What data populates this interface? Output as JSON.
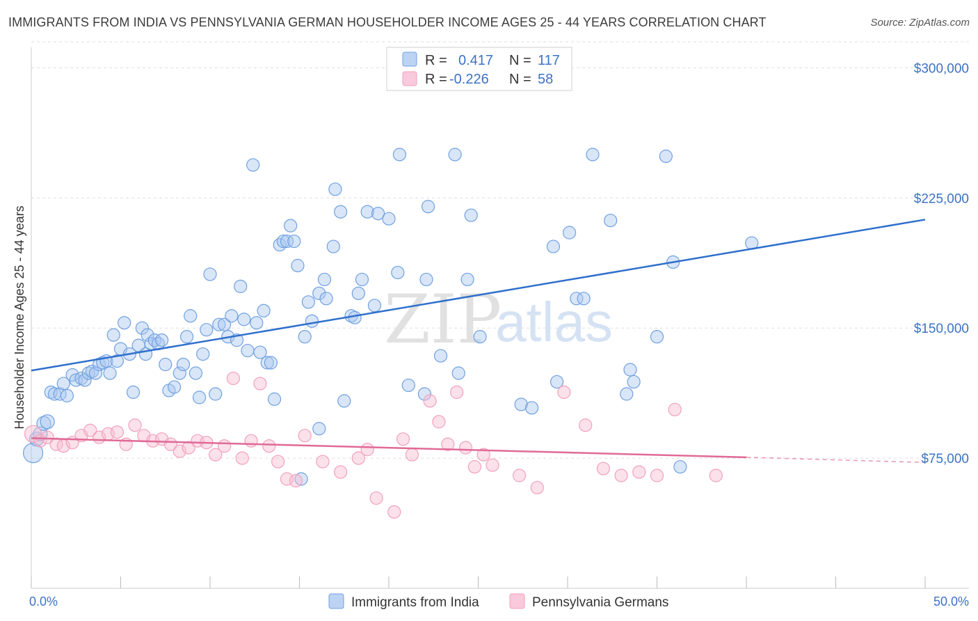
{
  "title": "IMMIGRANTS FROM INDIA VS PENNSYLVANIA GERMAN HOUSEHOLDER INCOME AGES 25 - 44 YEARS CORRELATION CHART",
  "source": "Source: ZipAtlas.com",
  "watermark": {
    "zip": "ZIP",
    "atlas": "atlas"
  },
  "colors": {
    "india": "#6fa0e0",
    "india_line": "#2f6fcc",
    "pa": "#f2a0bb",
    "pa_line": "#e06a96",
    "axis_text": "#3b73c4",
    "grid": "#dddddd"
  },
  "legend": {
    "rows": [
      {
        "r_label": "R =",
        "r_value": "0.417",
        "n_label": "N =",
        "n_value": "117"
      },
      {
        "r_label": "R =",
        "r_value": "-0.226",
        "n_label": "N =",
        "n_value": "58"
      }
    ]
  },
  "chart_data": {
    "type": "scatter",
    "xlabel": "",
    "ylabel": "Householder Income Ages 25 - 44 years",
    "xlim": [
      0,
      50
    ],
    "ylim": [
      0,
      315000
    ],
    "x_tick_labels": [
      "0.0%",
      "50.0%"
    ],
    "y_ticks": [
      75000,
      150000,
      225000,
      300000
    ],
    "y_tick_labels": [
      "$75,000",
      "$150,000",
      "$225,000",
      "$300,000"
    ],
    "grid": "horizontal dashed",
    "legend_position": "top-center",
    "series": [
      {
        "name": "Immigrants from India",
        "r": 0.417,
        "n": 117,
        "trend": [
          [
            0,
            125500
          ],
          [
            50,
            212500
          ]
        ],
        "points": [
          [
            0.1,
            78000
          ],
          [
            0.3,
            86000
          ],
          [
            0.5,
            89000
          ],
          [
            0.7,
            95000
          ],
          [
            0.9,
            96000
          ],
          [
            1.1,
            113000
          ],
          [
            1.3,
            112000
          ],
          [
            1.6,
            112000
          ],
          [
            1.8,
            118000
          ],
          [
            2.0,
            111000
          ],
          [
            2.3,
            123000
          ],
          [
            2.5,
            120000
          ],
          [
            2.8,
            121000
          ],
          [
            3.0,
            120000
          ],
          [
            3.2,
            124000
          ],
          [
            3.4,
            125000
          ],
          [
            3.6,
            124000
          ],
          [
            3.8,
            129000
          ],
          [
            4.0,
            130000
          ],
          [
            4.2,
            131000
          ],
          [
            4.4,
            124000
          ],
          [
            4.6,
            146000
          ],
          [
            4.8,
            131000
          ],
          [
            5.0,
            138000
          ],
          [
            5.2,
            153000
          ],
          [
            5.5,
            135000
          ],
          [
            5.7,
            113000
          ],
          [
            6.0,
            140000
          ],
          [
            6.2,
            150000
          ],
          [
            6.4,
            135000
          ],
          [
            6.5,
            146000
          ],
          [
            6.7,
            141000
          ],
          [
            6.9,
            143000
          ],
          [
            7.1,
            141000
          ],
          [
            7.3,
            143000
          ],
          [
            7.5,
            129000
          ],
          [
            7.7,
            114000
          ],
          [
            8.0,
            116000
          ],
          [
            8.3,
            124000
          ],
          [
            8.5,
            129000
          ],
          [
            8.7,
            145000
          ],
          [
            8.9,
            157000
          ],
          [
            9.2,
            124000
          ],
          [
            9.4,
            110000
          ],
          [
            9.6,
            135000
          ],
          [
            9.8,
            149000
          ],
          [
            10.0,
            181000
          ],
          [
            10.3,
            112000
          ],
          [
            10.5,
            152000
          ],
          [
            10.8,
            152000
          ],
          [
            11.0,
            145000
          ],
          [
            11.2,
            157000
          ],
          [
            11.5,
            143000
          ],
          [
            11.7,
            174000
          ],
          [
            11.9,
            155000
          ],
          [
            12.1,
            137000
          ],
          [
            12.4,
            244000
          ],
          [
            12.6,
            153000
          ],
          [
            12.8,
            136000
          ],
          [
            13.0,
            160000
          ],
          [
            13.2,
            130000
          ],
          [
            13.4,
            130000
          ],
          [
            13.6,
            109000
          ],
          [
            13.9,
            198000
          ],
          [
            14.1,
            200000
          ],
          [
            14.3,
            200000
          ],
          [
            14.5,
            209000
          ],
          [
            14.7,
            200000
          ],
          [
            14.9,
            186000
          ],
          [
            15.1,
            63000
          ],
          [
            15.3,
            145000
          ],
          [
            15.5,
            165000
          ],
          [
            15.7,
            154000
          ],
          [
            16.1,
            92000
          ],
          [
            16.1,
            170000
          ],
          [
            16.4,
            178000
          ],
          [
            16.5,
            167000
          ],
          [
            16.9,
            197000
          ],
          [
            17.0,
            230000
          ],
          [
            17.3,
            217000
          ],
          [
            17.5,
            108000
          ],
          [
            17.9,
            157000
          ],
          [
            18.1,
            156000
          ],
          [
            18.3,
            170000
          ],
          [
            18.5,
            178000
          ],
          [
            18.8,
            217000
          ],
          [
            19.2,
            163000
          ],
          [
            19.4,
            216000
          ],
          [
            20.0,
            213000
          ],
          [
            20.5,
            182000
          ],
          [
            20.6,
            250000
          ],
          [
            21.1,
            117000
          ],
          [
            22.0,
            112000
          ],
          [
            22.1,
            178000
          ],
          [
            22.2,
            220000
          ],
          [
            22.9,
            134000
          ],
          [
            23.7,
            250000
          ],
          [
            23.9,
            124000
          ],
          [
            24.4,
            178000
          ],
          [
            24.6,
            215000
          ],
          [
            25.1,
            145000
          ],
          [
            27.4,
            106000
          ],
          [
            28.0,
            104000
          ],
          [
            29.2,
            197000
          ],
          [
            29.4,
            119000
          ],
          [
            30.1,
            205000
          ],
          [
            30.5,
            167000
          ],
          [
            30.9,
            167000
          ],
          [
            31.4,
            250000
          ],
          [
            32.4,
            212000
          ],
          [
            33.3,
            112000
          ],
          [
            33.5,
            126000
          ],
          [
            33.7,
            119000
          ],
          [
            35.0,
            145000
          ],
          [
            35.5,
            249000
          ],
          [
            35.9,
            188000
          ],
          [
            36.3,
            70000
          ],
          [
            40.3,
            199000
          ]
        ]
      },
      {
        "name": "Pennsylvania Germans",
        "r": -0.226,
        "n": 58,
        "trend": [
          [
            0,
            86500
          ],
          [
            40.0,
            75500
          ]
        ],
        "trend_dashed": [
          [
            40.0,
            75500
          ],
          [
            50,
            72500
          ]
        ],
        "points": [
          [
            0.1,
            89000
          ],
          [
            0.5,
            85000
          ],
          [
            0.9,
            87000
          ],
          [
            1.4,
            83000
          ],
          [
            1.8,
            82000
          ],
          [
            2.3,
            84000
          ],
          [
            2.8,
            88000
          ],
          [
            3.3,
            91000
          ],
          [
            3.8,
            87000
          ],
          [
            4.3,
            89000
          ],
          [
            4.8,
            90000
          ],
          [
            5.3,
            83000
          ],
          [
            5.8,
            94000
          ],
          [
            6.3,
            88000
          ],
          [
            6.8,
            85000
          ],
          [
            7.3,
            86000
          ],
          [
            7.8,
            83000
          ],
          [
            8.3,
            79000
          ],
          [
            8.8,
            81000
          ],
          [
            9.3,
            85000
          ],
          [
            9.8,
            84000
          ],
          [
            10.3,
            77000
          ],
          [
            10.8,
            82000
          ],
          [
            11.3,
            121000
          ],
          [
            11.8,
            75000
          ],
          [
            12.3,
            85000
          ],
          [
            12.8,
            118000
          ],
          [
            13.3,
            82000
          ],
          [
            13.8,
            73000
          ],
          [
            14.3,
            63000
          ],
          [
            14.8,
            62000
          ],
          [
            15.3,
            88000
          ],
          [
            16.3,
            73000
          ],
          [
            17.3,
            67000
          ],
          [
            18.3,
            75000
          ],
          [
            18.8,
            80000
          ],
          [
            19.3,
            52000
          ],
          [
            20.3,
            44000
          ],
          [
            20.8,
            86000
          ],
          [
            21.3,
            77000
          ],
          [
            22.3,
            108000
          ],
          [
            22.8,
            96000
          ],
          [
            23.3,
            83000
          ],
          [
            23.8,
            113000
          ],
          [
            24.3,
            81000
          ],
          [
            24.8,
            70000
          ],
          [
            25.3,
            77000
          ],
          [
            25.8,
            71000
          ],
          [
            27.3,
            65000
          ],
          [
            28.3,
            58000
          ],
          [
            29.8,
            113000
          ],
          [
            31.0,
            94000
          ],
          [
            32.0,
            69000
          ],
          [
            33.0,
            65000
          ],
          [
            34.0,
            67000
          ],
          [
            35.0,
            65000
          ],
          [
            36.0,
            103000
          ],
          [
            38.3,
            65000
          ]
        ]
      }
    ]
  }
}
